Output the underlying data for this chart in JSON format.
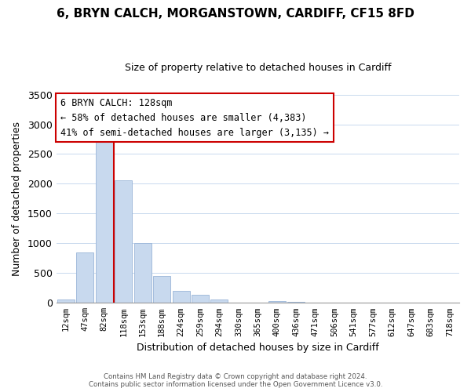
{
  "title": "6, BRYN CALCH, MORGANSTOWN, CARDIFF, CF15 8FD",
  "subtitle": "Size of property relative to detached houses in Cardiff",
  "xlabel": "Distribution of detached houses by size in Cardiff",
  "ylabel": "Number of detached properties",
  "bar_labels": [
    "12sqm",
    "47sqm",
    "82sqm",
    "118sqm",
    "153sqm",
    "188sqm",
    "224sqm",
    "259sqm",
    "294sqm",
    "330sqm",
    "365sqm",
    "400sqm",
    "436sqm",
    "471sqm",
    "506sqm",
    "541sqm",
    "577sqm",
    "612sqm",
    "647sqm",
    "683sqm",
    "718sqm"
  ],
  "bar_values": [
    60,
    850,
    2750,
    2060,
    1000,
    450,
    200,
    140,
    60,
    0,
    0,
    35,
    20,
    0,
    0,
    0,
    0,
    0,
    0,
    0,
    0
  ],
  "bar_color_normal": "#c8d9ee",
  "bar_edge_color": "#9ab5d8",
  "vline_color": "#cc0000",
  "vline_x": 2.5,
  "ylim": [
    0,
    3500
  ],
  "yticks": [
    0,
    500,
    1000,
    1500,
    2000,
    2500,
    3000,
    3500
  ],
  "annotation_title": "6 BRYN CALCH: 128sqm",
  "annotation_line1": "← 58% of detached houses are smaller (4,383)",
  "annotation_line2": "41% of semi-detached houses are larger (3,135) →",
  "annotation_box_color": "#ffffff",
  "annotation_box_edge": "#cc0000",
  "footer_line1": "Contains HM Land Registry data © Crown copyright and database right 2024.",
  "footer_line2": "Contains public sector information licensed under the Open Government Licence v3.0.",
  "background_color": "#ffffff",
  "grid_color": "#c8d9ee",
  "title_fontsize": 11,
  "subtitle_fontsize": 9,
  "ylabel_fontsize": 9,
  "xlabel_fontsize": 9
}
